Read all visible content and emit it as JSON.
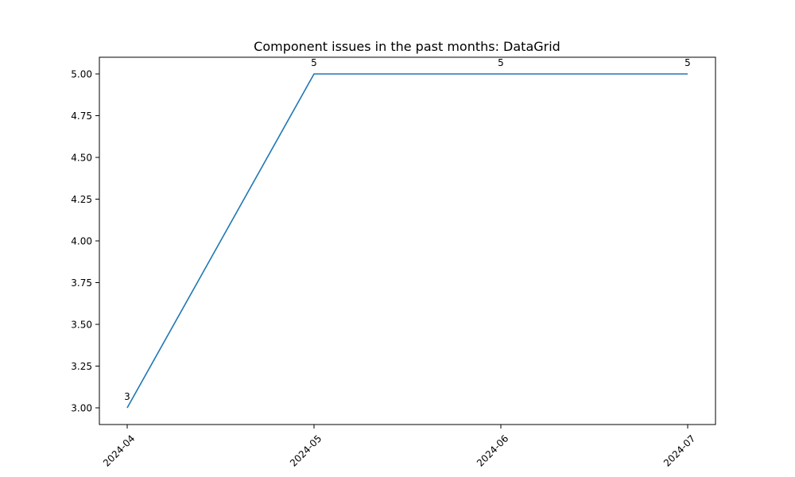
{
  "chart_data": {
    "type": "line",
    "title": "Component issues in the past months: DataGrid",
    "xlabel": "",
    "ylabel": "",
    "x": [
      "2024-04",
      "2024-05",
      "2024-06",
      "2024-07"
    ],
    "series": [
      {
        "values": [
          3,
          5,
          5,
          5
        ]
      }
    ],
    "data_labels": [
      "3",
      "5",
      "5",
      "5"
    ],
    "y_ticks": [
      "3.00",
      "3.25",
      "3.50",
      "3.75",
      "4.00",
      "4.25",
      "4.50",
      "4.75",
      "5.00"
    ],
    "ylim": [
      2.9,
      5.1
    ],
    "grid": false,
    "legend": "none",
    "x_tick_rotation": 45,
    "colors": {
      "line": "#1f77b4",
      "axes": "#000000",
      "background": "#ffffff"
    }
  }
}
